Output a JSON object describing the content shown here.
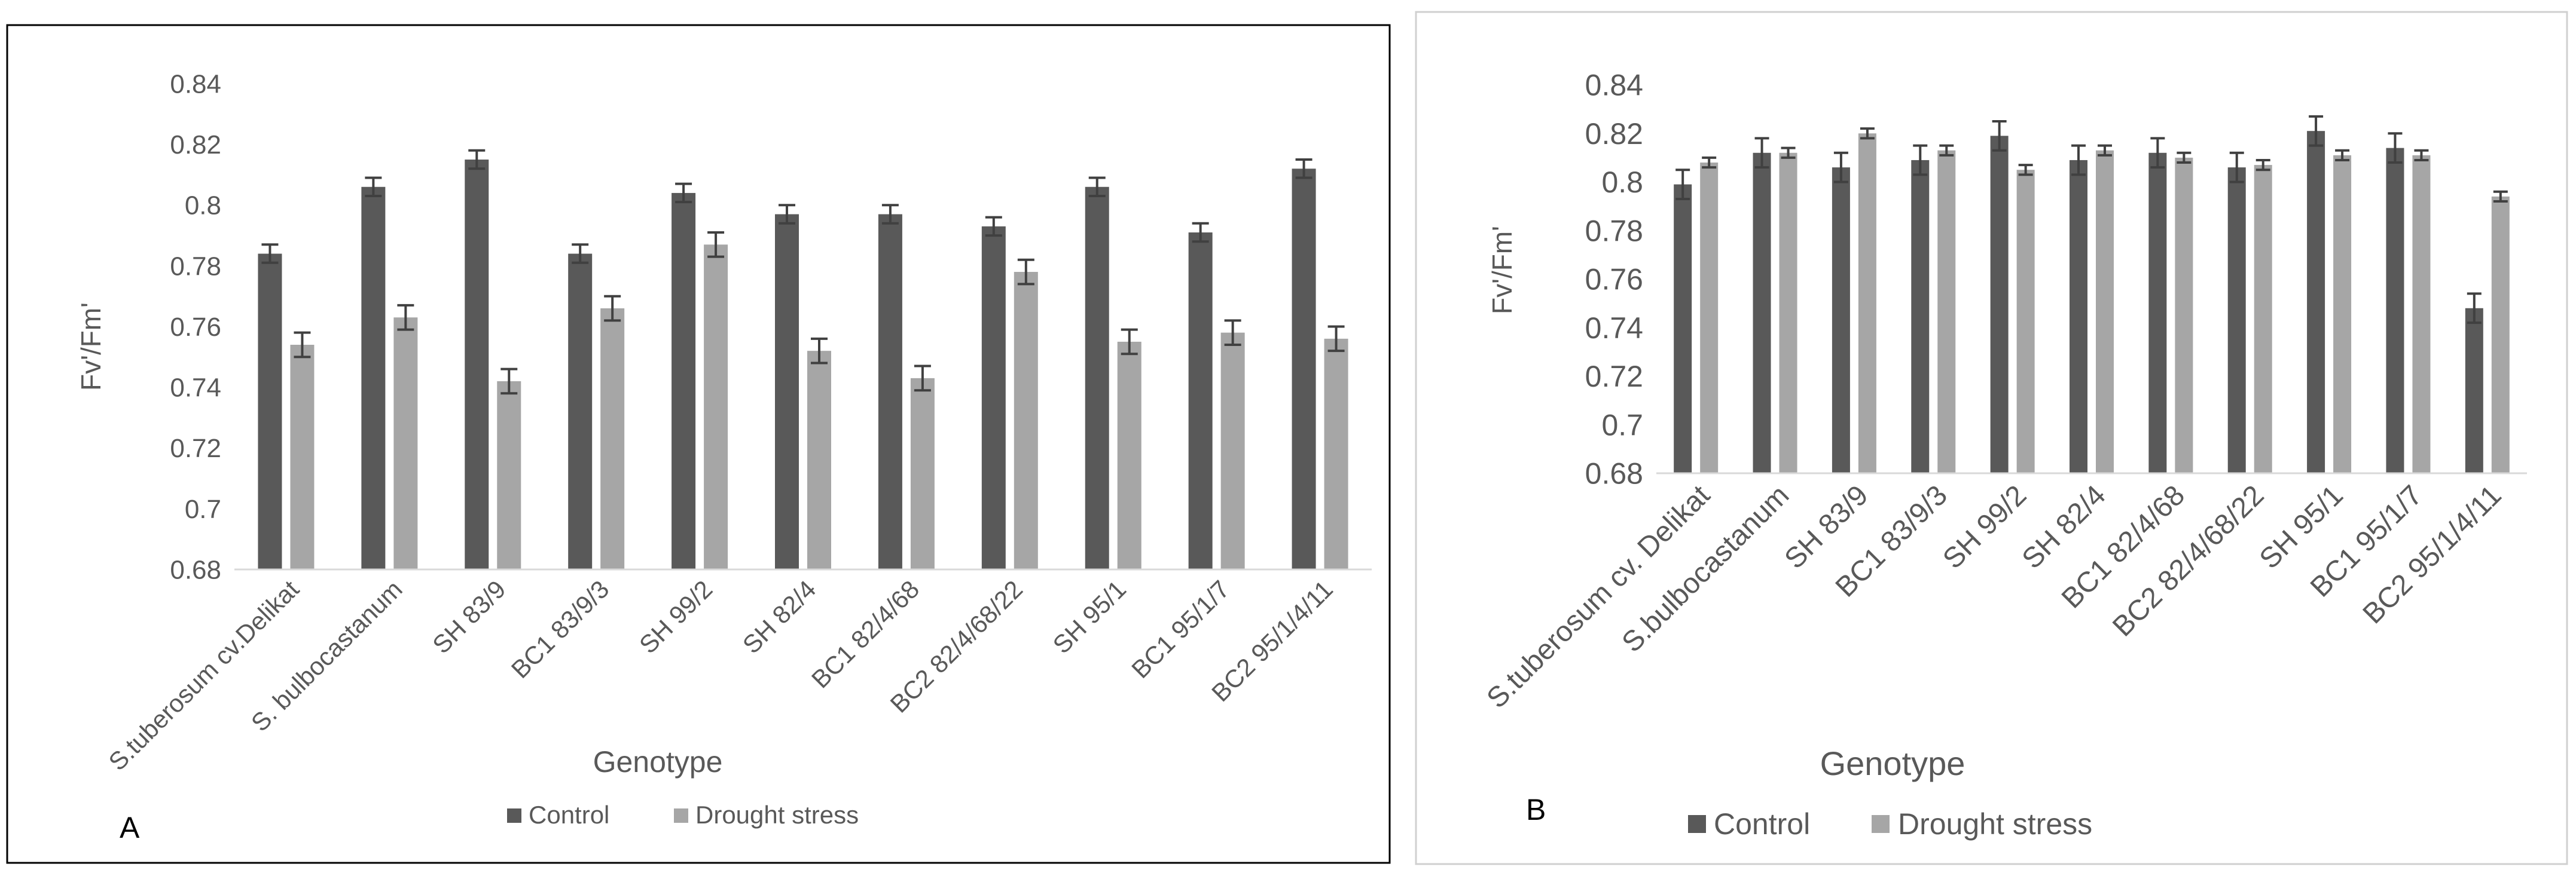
{
  "colors": {
    "control": "#595959",
    "drought": "#a6a6a6",
    "axis": "#d9d9d9",
    "text": "#595959",
    "panel_border_a": "#000000",
    "panel_border_b": "#d0d0d0",
    "error_bar": "#404040"
  },
  "chart_data": [
    {
      "type": "bar",
      "panel_label": "A",
      "title": "",
      "xlabel": "Genotype",
      "ylabel": "Fv'/Fm'",
      "ylim": [
        0.68,
        0.84
      ],
      "yticks": [
        "0.68",
        "0.7",
        "0.72",
        "0.74",
        "0.76",
        "0.78",
        "0.8",
        "0.82",
        "0.84"
      ],
      "grid": false,
      "legend_position": "bottom",
      "categories": [
        "S.tuberosum cv.Delikat",
        "S. bulbocastanum",
        "SH 83/9",
        "BC1 83/9/3",
        "SH 99/2",
        "SH  82/4",
        "BC1 82/4/68",
        "BC2 82/4/68/22",
        "SH 95/1",
        "BC1 95/1/7",
        "BC2 95/1/4/11"
      ],
      "series": [
        {
          "name": "Control",
          "values": [
            0.784,
            0.806,
            0.815,
            0.784,
            0.804,
            0.797,
            0.797,
            0.793,
            0.806,
            0.791,
            0.812
          ],
          "errors": [
            0.003,
            0.003,
            0.003,
            0.003,
            0.003,
            0.003,
            0.003,
            0.003,
            0.003,
            0.003,
            0.003
          ]
        },
        {
          "name": "Drought stress",
          "values": [
            0.754,
            0.763,
            0.742,
            0.766,
            0.787,
            0.752,
            0.743,
            0.778,
            0.755,
            0.758,
            0.756
          ],
          "errors": [
            0.004,
            0.004,
            0.004,
            0.004,
            0.004,
            0.004,
            0.004,
            0.004,
            0.004,
            0.004,
            0.004
          ]
        }
      ]
    },
    {
      "type": "bar",
      "panel_label": "B",
      "title": "",
      "xlabel": "Genotype",
      "ylabel": "Fv'/Fm'",
      "ylim": [
        0.68,
        0.84
      ],
      "yticks": [
        "0.68",
        "0.7",
        "0.72",
        "0.74",
        "0.76",
        "0.78",
        "0.8",
        "0.82",
        "0.84"
      ],
      "grid": false,
      "legend_position": "bottom",
      "categories": [
        "S.tuberosum cv. Delikat",
        "S.bulbocastanum",
        "SH 83/9",
        "BC1 83/9/3",
        "SH 99/2",
        "SH 82/4",
        "BC1 82/4/68",
        "BC2 82/4/68/22",
        "SH 95/1",
        "BC1 95/1/7",
        "BC2 95/1/4/11"
      ],
      "series": [
        {
          "name": "Control",
          "values": [
            0.799,
            0.812,
            0.806,
            0.809,
            0.819,
            0.809,
            0.812,
            0.806,
            0.821,
            0.814,
            0.748
          ],
          "errors": [
            0.006,
            0.006,
            0.006,
            0.006,
            0.006,
            0.006,
            0.006,
            0.006,
            0.006,
            0.006,
            0.006
          ]
        },
        {
          "name": "Drought stress",
          "values": [
            0.808,
            0.812,
            0.82,
            0.813,
            0.805,
            0.813,
            0.81,
            0.807,
            0.811,
            0.811,
            0.794
          ],
          "errors": [
            0.002,
            0.002,
            0.002,
            0.002,
            0.002,
            0.002,
            0.002,
            0.002,
            0.002,
            0.002,
            0.002
          ]
        }
      ]
    }
  ]
}
